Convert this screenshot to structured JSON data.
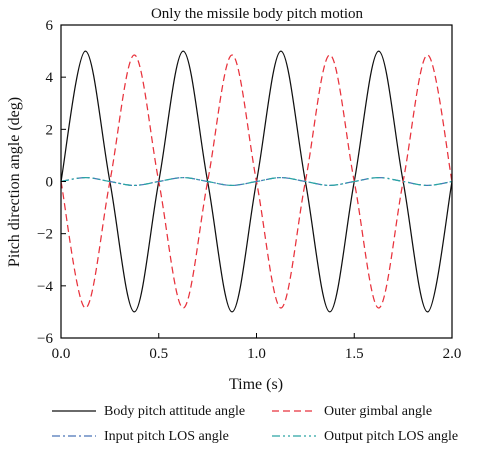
{
  "chart_data": {
    "type": "line",
    "title": "Only the missile body pitch motion",
    "xlabel": "Time (s)",
    "ylabel": "Pitch direction angle (deg)",
    "xlim": [
      0,
      2
    ],
    "ylim": [
      -6,
      6
    ],
    "x_ticks": [
      0,
      0.5,
      1,
      1.5,
      2
    ],
    "x_tick_labels": [
      "0.0",
      "0.5",
      "1.0",
      "1.5",
      "2.0"
    ],
    "y_ticks": [
      -6,
      -4,
      -2,
      0,
      2,
      4,
      6
    ],
    "y_tick_labels": [
      "−6",
      "−4",
      "−2",
      "0",
      "2",
      "4",
      "6"
    ],
    "grid": false,
    "legend_position": "bottom",
    "x": [
      0,
      0.125,
      0.25,
      0.375,
      0.5,
      0.625,
      0.75,
      0.875,
      1,
      1.125,
      1.25,
      1.375,
      1.5,
      1.625,
      1.75,
      1.875,
      2
    ],
    "series": [
      {
        "name": "Body pitch attitude angle",
        "color": "#111111",
        "dash": "solid",
        "values": [
          0,
          5,
          0,
          -5,
          0,
          5,
          0,
          -5,
          0,
          5,
          0,
          -5,
          0,
          5,
          0,
          -5,
          0
        ]
      },
      {
        "name": "Outer gimbal angle",
        "color": "#e8323c",
        "dash": "dash",
        "values": [
          0,
          -4.85,
          0,
          4.85,
          0,
          -4.85,
          0,
          4.85,
          0,
          -4.85,
          0,
          4.85,
          0,
          -4.85,
          0,
          4.85,
          0
        ]
      },
      {
        "name": "Input pitch LOS angle",
        "color": "#4a74b8",
        "dash": "dashdot",
        "values": [
          0,
          0.15,
          0,
          -0.15,
          0,
          0.15,
          0,
          -0.15,
          0,
          0.15,
          0,
          -0.15,
          0,
          0.15,
          0,
          -0.15,
          0
        ]
      },
      {
        "name": "Output pitch LOS angle",
        "color": "#2aa4a4",
        "dash": "dashdotdot",
        "values": [
          0,
          0.15,
          0,
          -0.15,
          0,
          0.15,
          0,
          -0.15,
          0,
          0.15,
          0,
          -0.15,
          0,
          0.15,
          0,
          -0.15,
          0
        ]
      }
    ]
  }
}
